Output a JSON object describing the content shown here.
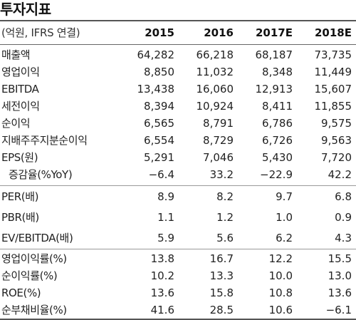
{
  "title": "투자지표",
  "header": {
    "unit_label": "(억원, IFRS 연결)",
    "years": [
      "2015",
      "2016",
      "2017E",
      "2018E"
    ]
  },
  "rows": [
    {
      "label": "매출액",
      "values": [
        "64,282",
        "66,218",
        "68,187",
        "73,735"
      ]
    },
    {
      "label": "영업이익",
      "values": [
        "8,850",
        "11,032",
        "8,348",
        "11,449"
      ]
    },
    {
      "label": "EBITDA",
      "values": [
        "13,438",
        "16,060",
        "12,913",
        "15,607"
      ]
    },
    {
      "label": "세전이익",
      "values": [
        "8,394",
        "10,924",
        "8,411",
        "11,855"
      ]
    },
    {
      "label": "순이익",
      "values": [
        "6,565",
        "8,791",
        "6,786",
        "9,575"
      ]
    },
    {
      "label": "지배주주지분순이익",
      "values": [
        "6,554",
        "8,729",
        "6,726",
        "9,563"
      ]
    },
    {
      "label": "EPS(원)",
      "values": [
        "5,291",
        "7,046",
        "5,430",
        "7,720"
      ]
    },
    {
      "label": "증감율(%YoY)",
      "values": [
        "−6.4",
        "33.2",
        "−22.9",
        "42.2"
      ]
    },
    {
      "label": "PER(배)",
      "values": [
        "8.9",
        "8.2",
        "9.7",
        "6.8"
      ]
    },
    {
      "label": "PBR(배)",
      "values": [
        "1.1",
        "1.2",
        "1.0",
        "0.9"
      ]
    },
    {
      "label": "EV/EBITDA(배)",
      "values": [
        "5.9",
        "5.6",
        "6.2",
        "4.3"
      ]
    },
    {
      "label": "영업이익률(%)",
      "values": [
        "13.8",
        "16.7",
        "12.2",
        "15.5"
      ]
    },
    {
      "label": "순이익률(%)",
      "values": [
        "10.2",
        "13.3",
        "10.0",
        "13.0"
      ]
    },
    {
      "label": "ROE(%)",
      "values": [
        "13.6",
        "15.8",
        "10.8",
        "13.6"
      ]
    },
    {
      "label": "순부채비율(%)",
      "values": [
        "41.6",
        "28.5",
        "10.6",
        "−6.1"
      ]
    }
  ]
}
